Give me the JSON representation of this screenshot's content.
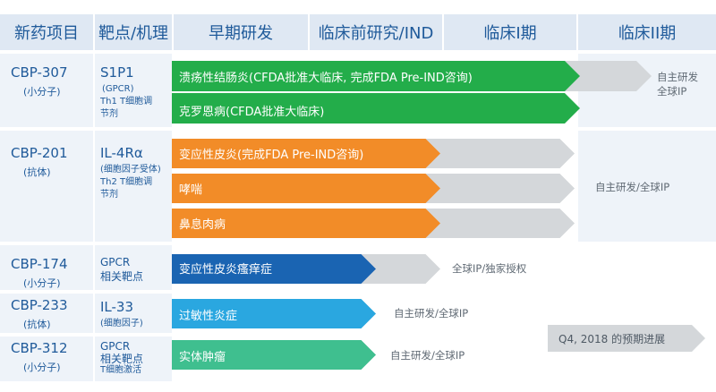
{
  "headers": [
    "新药项目",
    "靶点/机理",
    "早期研发",
    "临床前研究/IND",
    "临床I期",
    "临床II期"
  ],
  "rows": [
    {
      "drug": "CBP-307",
      "type": "(小分子)",
      "target": "S1P1",
      "target_notes": [
        "(GPCR)",
        "Th1 T细胞调",
        "节剂"
      ],
      "right_status": [
        "自主研发",
        "全球IP"
      ],
      "bars": [
        {
          "label": "溃疡性结肠炎(CFDA批准大临床, 完成FDA Pre-IND咨询)",
          "color": "#23ad4a",
          "progress": "临床I期"
        },
        {
          "label": "克罗恩病(CFDA批准大临床)",
          "color": "#23ad4a",
          "progress": "临床I期"
        }
      ]
    },
    {
      "drug": "CBP-201",
      "type": "(抗体)",
      "target": "IL-4Rα",
      "target_notes": [
        "(细胞因子受体)",
        "Th2 T细胞调",
        "节剂"
      ],
      "right_status": [
        "自主研发/全球IP"
      ],
      "bars": [
        {
          "label": "变应性皮炎(完成FDA Pre-IND咨询)",
          "color": "#f28c28",
          "progress": "临床前研究/IND"
        },
        {
          "label": "哮喘",
          "color": "#f28c28",
          "progress": "临床前研究/IND"
        },
        {
          "label": "鼻息肉病",
          "color": "#f28c28",
          "progress": "临床前研究/IND"
        }
      ]
    },
    {
      "drug": "CBP-174",
      "type": "(小分子)",
      "target": "",
      "target_notes": [
        "GPCR",
        "相关靶点"
      ],
      "right_status": [
        "全球IP/独家授权"
      ],
      "bars": [
        {
          "label": "变应性皮炎瘙痒症",
          "color": "#1a64b2",
          "progress": "早期研发"
        }
      ]
    },
    {
      "drug": "CBP-233",
      "type": "(抗体)",
      "target": "IL-33",
      "target_notes": [
        "(细胞因子)"
      ],
      "right_status": [
        "自主研发/全球IP"
      ],
      "bars": [
        {
          "label": "过敏性炎症",
          "color": "#2aa7e0",
          "progress": "早期研发"
        }
      ]
    },
    {
      "drug": "CBP-312",
      "type": "(小分子)",
      "target": "",
      "target_notes": [
        "GPCR",
        "相关靶点",
        "T细胞激活"
      ],
      "right_status": [
        "自主研发/全球IP"
      ],
      "bars": [
        {
          "label": "实体肿瘤",
          "color": "#3fbf8f",
          "progress": "早期研发"
        }
      ]
    }
  ],
  "legend_label": "Q4, 2018 的预期进展",
  "colors": {
    "header_bg": "#dfe8f3",
    "header_text": "#1f5a9a",
    "row_bg": "#eef3f9",
    "grey_arrow": "#d4d7da",
    "status_text": "#606a74"
  }
}
